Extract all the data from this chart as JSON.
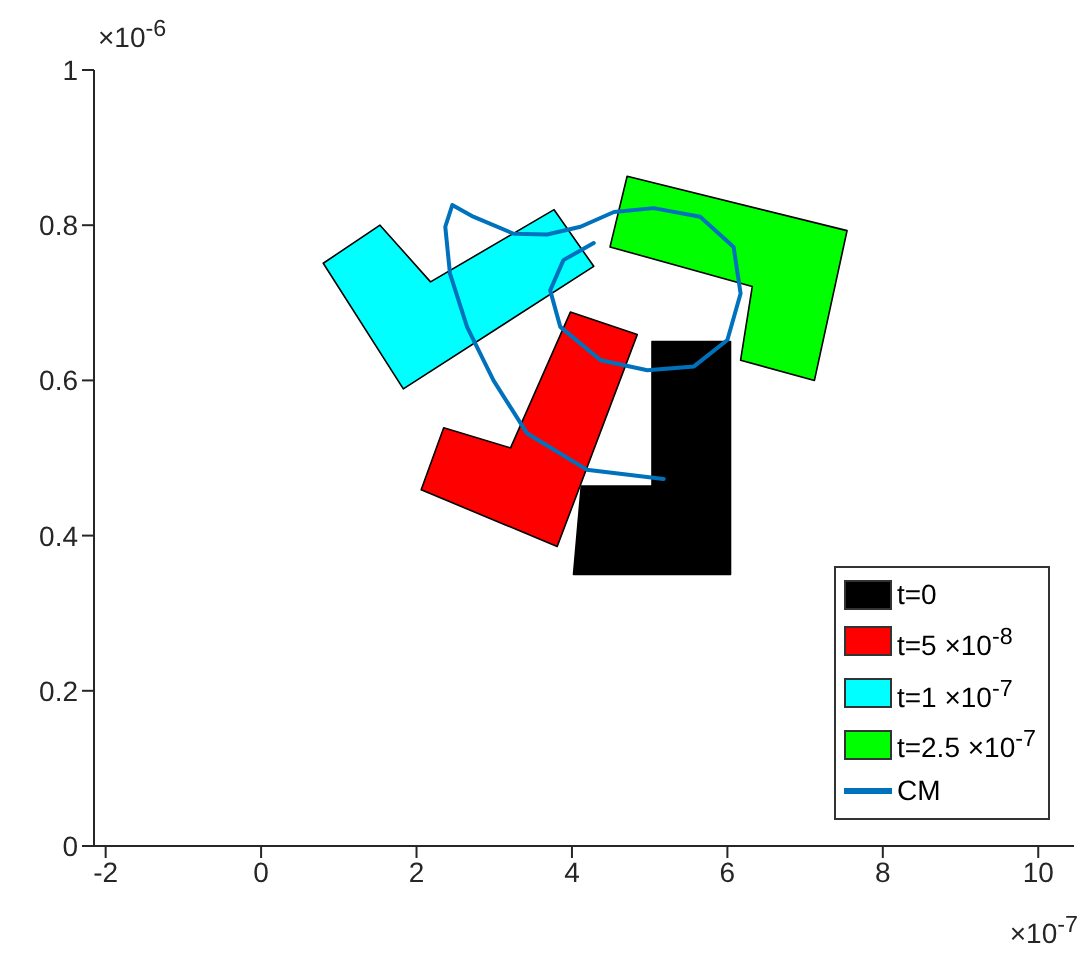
{
  "chart_data": {
    "type": "area",
    "xlim": [
      -2.15,
      10.46
    ],
    "xticks": [
      -2,
      0,
      2,
      4,
      6,
      8,
      10
    ],
    "ylim": [
      0,
      1
    ],
    "yticks": [
      0,
      0.2,
      0.4,
      0.6,
      0.8,
      1
    ],
    "annotations": [
      "×10$^{-6}$",
      "×10$^{-7}$"
    ],
    "legend": "bottom right",
    "grid": false,
    "series": [
      {
        "name": "t=0",
        "color": "#000000",
        "x": [
          5.03,
          6.04,
          6.04,
          4.02,
          4.12,
          5.03
        ],
        "values": [
          0.65,
          0.65,
          0.35,
          0.35,
          0.464,
          0.464
        ]
      },
      {
        "name": "t=5 ×10$^{-8}$",
        "color": "#ff0000",
        "x": [
          3.98,
          4.84,
          3.81,
          2.06,
          2.35,
          3.21
        ],
        "values": [
          0.688,
          0.659,
          0.386,
          0.459,
          0.539,
          0.513
        ]
      },
      {
        "name": "t=1 ×10$^{-7}$",
        "color": "#00ffff",
        "x": [
          0.8,
          1.53,
          2.18,
          3.77,
          4.28,
          1.83
        ],
        "values": [
          0.751,
          0.8,
          0.727,
          0.82,
          0.747,
          0.589
        ]
      },
      {
        "name": "t=2.5 ×10$^{-7}$",
        "color": "#00ff00",
        "x": [
          4.71,
          7.54,
          7.12,
          6.17,
          6.32,
          4.49
        ],
        "values": [
          0.863,
          0.793,
          0.6,
          0.626,
          0.721,
          0.772
        ]
      },
      {
        "name": "CM",
        "type": "line",
        "color": "#0072bd",
        "line_style": "solid",
        "x": [
          5.18,
          4.19,
          3.42,
          2.99,
          2.65,
          2.43,
          2.37,
          2.46,
          2.73,
          3.25,
          3.68,
          4.11,
          4.54,
          5.05,
          5.65,
          6.08,
          6.17,
          6.0,
          5.57,
          4.97,
          4.37,
          3.85,
          3.72,
          3.89,
          4.28
        ],
        "values": [
          0.473,
          0.485,
          0.532,
          0.6,
          0.669,
          0.738,
          0.798,
          0.826,
          0.811,
          0.789,
          0.788,
          0.798,
          0.817,
          0.822,
          0.811,
          0.772,
          0.712,
          0.652,
          0.618,
          0.613,
          0.626,
          0.669,
          0.716,
          0.755,
          0.777
        ]
      }
    ]
  }
}
